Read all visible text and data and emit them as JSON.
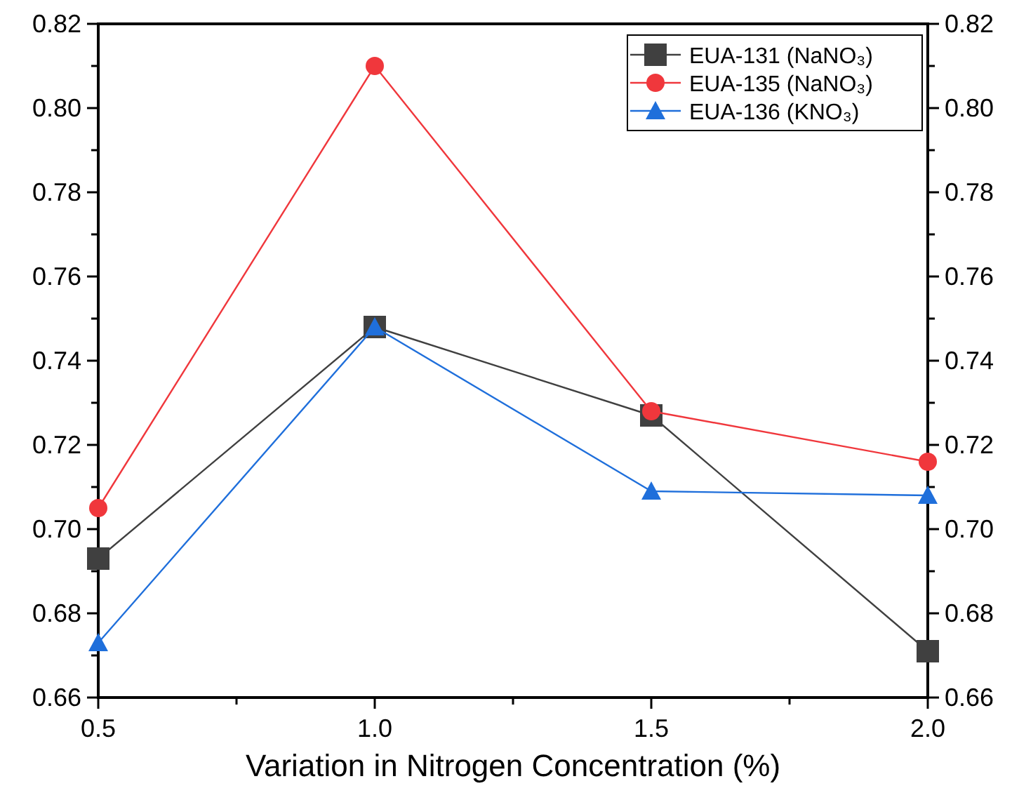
{
  "chart_data": {
    "type": "line",
    "xlabel": "Variation in Nitrogen Concentration (%)",
    "x": [
      0.5,
      1.0,
      1.5,
      2.0
    ],
    "series": [
      {
        "name": "EUA-131 (NaNO₃)",
        "color": "#404040",
        "values": [
          0.693,
          0.748,
          0.727,
          0.671
        ],
        "marker": "square"
      },
      {
        "name": "EUA-135 (NaNO₃)",
        "color": "#f0373c",
        "values": [
          0.705,
          0.81,
          0.728,
          0.716
        ],
        "marker": "circle"
      },
      {
        "name": "EUA-136 (KNO₃)",
        "color": "#1f6fdb",
        "values": [
          0.673,
          0.748,
          0.709,
          0.708
        ],
        "marker": "triangle"
      }
    ],
    "xlim": [
      0.5,
      2.0
    ],
    "xticks": [
      {
        "value": 0.5,
        "label": "0.5"
      },
      {
        "value": 0.75,
        "label": null
      },
      {
        "value": 1,
        "label": "1.0"
      },
      {
        "value": 1.25,
        "label": null
      },
      {
        "value": 1.5,
        "label": "1.5"
      },
      {
        "value": 1.75,
        "label": null
      },
      {
        "value": 2,
        "label": "2.0"
      }
    ],
    "ylim": [
      0.66,
      0.82
    ],
    "yticks": [
      {
        "value": 0.66,
        "label": "0.66"
      },
      {
        "value": 0.67,
        "label": null
      },
      {
        "value": 0.68,
        "label": "0.68"
      },
      {
        "value": 0.69,
        "label": null
      },
      {
        "value": 0.7,
        "label": "0.70"
      },
      {
        "value": 0.71,
        "label": null
      },
      {
        "value": 0.72,
        "label": "0.72"
      },
      {
        "value": 0.73,
        "label": null
      },
      {
        "value": 0.74,
        "label": "0.74"
      },
      {
        "value": 0.75,
        "label": null
      },
      {
        "value": 0.76,
        "label": "0.76"
      },
      {
        "value": 0.77,
        "label": null
      },
      {
        "value": 0.78,
        "label": "0.78"
      },
      {
        "value": 0.79,
        "label": null
      },
      {
        "value": 0.8,
        "label": "0.80"
      },
      {
        "value": 0.81,
        "label": null
      },
      {
        "value": 0.82,
        "label": "0.82"
      }
    ],
    "y2lim": [
      0.66,
      0.82
    ],
    "y2ticks": [
      {
        "value": 0.66,
        "label": "0.66"
      },
      {
        "value": 0.67,
        "label": null
      },
      {
        "value": 0.68,
        "label": "0.68"
      },
      {
        "value": 0.69,
        "label": null
      },
      {
        "value": 0.7,
        "label": "0.70"
      },
      {
        "value": 0.71,
        "label": null
      },
      {
        "value": 0.72,
        "label": "0.72"
      },
      {
        "value": 0.73,
        "label": null
      },
      {
        "value": 0.74,
        "label": "0.74"
      },
      {
        "value": 0.75,
        "label": null
      },
      {
        "value": 0.76,
        "label": "0.76"
      },
      {
        "value": 0.77,
        "label": null
      },
      {
        "value": 0.78,
        "label": "0.78"
      },
      {
        "value": 0.79,
        "label": null
      },
      {
        "value": 0.8,
        "label": "0.80"
      },
      {
        "value": 0.81,
        "label": null
      },
      {
        "value": 0.82,
        "label": "0.82"
      }
    ],
    "grid": false,
    "legend": "top right",
    "line_style": "solid"
  }
}
